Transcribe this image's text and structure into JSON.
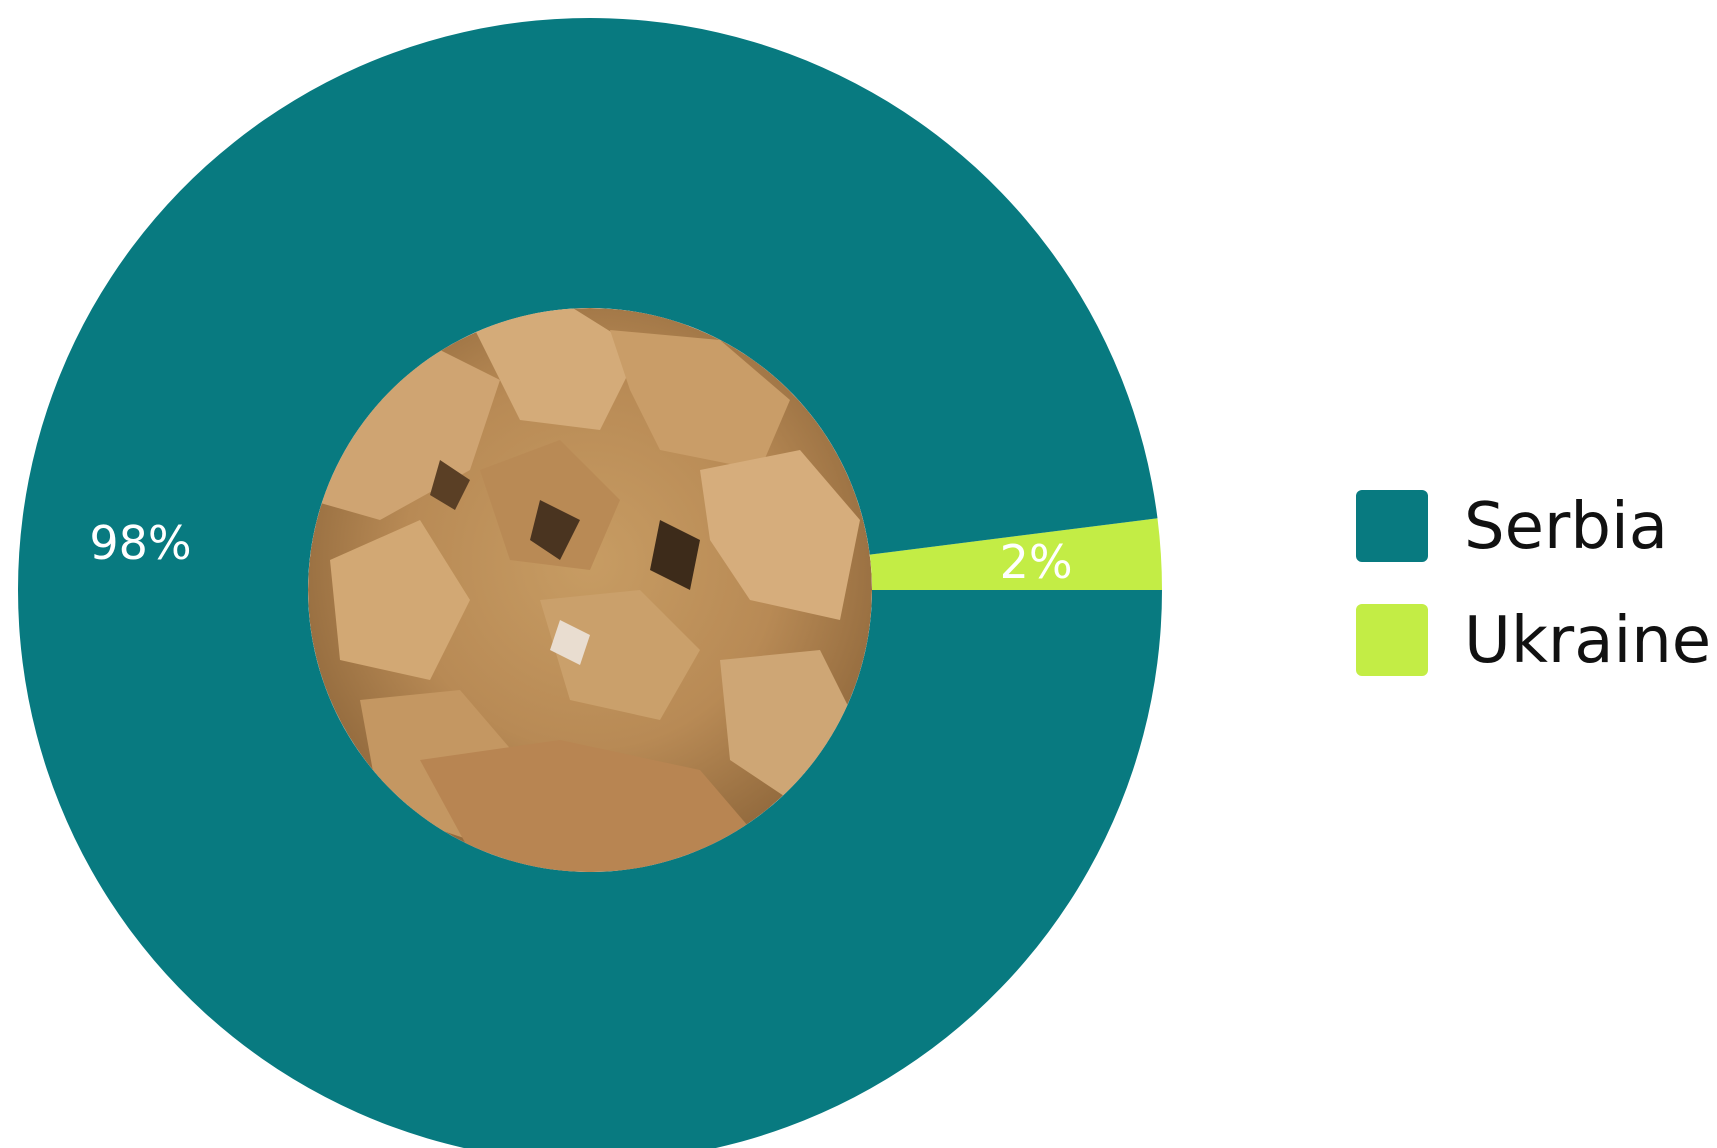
{
  "chart_data": {
    "type": "pie",
    "variant": "donut",
    "center_image": "crumbled-brown-meal-photo",
    "legend_placement": "right",
    "slices": [
      {
        "name": "Serbia",
        "value": 98,
        "label": "98%",
        "color": "#087A80"
      },
      {
        "name": "Ukraine",
        "value": 2,
        "label": "2%",
        "color": "#C3ED45"
      }
    ]
  }
}
